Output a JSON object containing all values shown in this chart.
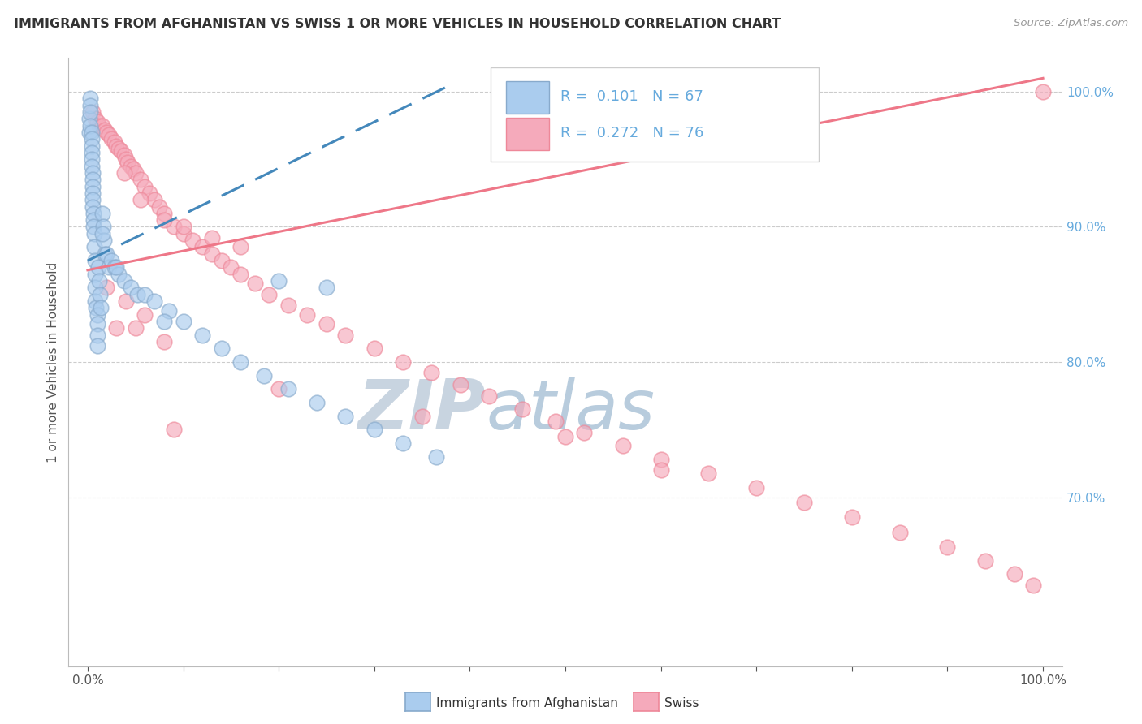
{
  "title": "IMMIGRANTS FROM AFGHANISTAN VS SWISS 1 OR MORE VEHICLES IN HOUSEHOLD CORRELATION CHART",
  "source": "Source: ZipAtlas.com",
  "ylabel": "1 or more Vehicles in Household",
  "watermark_zip": "ZIP",
  "watermark_atlas": "atlas",
  "xlim": [
    -0.02,
    1.02
  ],
  "ylim": [
    0.575,
    1.025
  ],
  "x_tick_positions": [
    0.0,
    0.1,
    0.2,
    0.3,
    0.4,
    0.5,
    0.6,
    0.7,
    0.8,
    0.9,
    1.0
  ],
  "x_tick_labels": [
    "0.0%",
    "",
    "",
    "",
    "",
    "",
    "",
    "",
    "",
    "",
    "100.0%"
  ],
  "y_tick_positions_right": [
    0.7,
    0.8,
    0.9,
    1.0
  ],
  "y_tick_labels_right": [
    "70.0%",
    "80.0%",
    "90.0%",
    "100.0%"
  ],
  "blue_scatter_face": "#aaccee",
  "blue_scatter_edge": "#88aacc",
  "pink_scatter_face": "#f5aabb",
  "pink_scatter_edge": "#ee8899",
  "blue_line_color": "#4488bb",
  "pink_line_color": "#ee7788",
  "grid_color": "#cccccc",
  "title_color": "#333333",
  "source_color": "#999999",
  "right_axis_color": "#66aadd",
  "watermark_zip_color": "#c8d4e0",
  "watermark_atlas_color": "#b8ccdd",
  "legend_border_color": "#cccccc",
  "bottom_label_color": "#333333",
  "blue_points_x": [
    0.002,
    0.002,
    0.003,
    0.003,
    0.003,
    0.003,
    0.004,
    0.004,
    0.004,
    0.004,
    0.004,
    0.004,
    0.005,
    0.005,
    0.005,
    0.005,
    0.005,
    0.005,
    0.006,
    0.006,
    0.006,
    0.007,
    0.007,
    0.008,
    0.008,
    0.008,
    0.008,
    0.009,
    0.01,
    0.01,
    0.01,
    0.01,
    0.011,
    0.012,
    0.013,
    0.014,
    0.015,
    0.016,
    0.017,
    0.018,
    0.02,
    0.022,
    0.025,
    0.028,
    0.032,
    0.038,
    0.045,
    0.052,
    0.06,
    0.07,
    0.085,
    0.1,
    0.12,
    0.14,
    0.16,
    0.185,
    0.21,
    0.24,
    0.27,
    0.3,
    0.33,
    0.365,
    0.2,
    0.25,
    0.08,
    0.03,
    0.015
  ],
  "blue_points_y": [
    0.98,
    0.97,
    0.995,
    0.99,
    0.985,
    0.975,
    0.97,
    0.965,
    0.96,
    0.955,
    0.95,
    0.945,
    0.94,
    0.935,
    0.93,
    0.925,
    0.92,
    0.915,
    0.91,
    0.905,
    0.9,
    0.895,
    0.885,
    0.875,
    0.865,
    0.855,
    0.845,
    0.84,
    0.835,
    0.828,
    0.82,
    0.812,
    0.87,
    0.86,
    0.85,
    0.84,
    0.91,
    0.9,
    0.89,
    0.88,
    0.88,
    0.87,
    0.875,
    0.87,
    0.865,
    0.86,
    0.855,
    0.85,
    0.85,
    0.845,
    0.838,
    0.83,
    0.82,
    0.81,
    0.8,
    0.79,
    0.78,
    0.77,
    0.76,
    0.75,
    0.74,
    0.73,
    0.86,
    0.855,
    0.83,
    0.87,
    0.895
  ],
  "pink_points_x": [
    0.005,
    0.008,
    0.01,
    0.012,
    0.015,
    0.018,
    0.02,
    0.022,
    0.025,
    0.028,
    0.03,
    0.032,
    0.035,
    0.038,
    0.04,
    0.042,
    0.045,
    0.048,
    0.05,
    0.055,
    0.06,
    0.065,
    0.07,
    0.075,
    0.08,
    0.09,
    0.1,
    0.11,
    0.12,
    0.13,
    0.14,
    0.15,
    0.16,
    0.175,
    0.19,
    0.21,
    0.23,
    0.25,
    0.27,
    0.3,
    0.33,
    0.36,
    0.39,
    0.42,
    0.455,
    0.49,
    0.52,
    0.56,
    0.6,
    0.65,
    0.7,
    0.75,
    0.8,
    0.85,
    0.9,
    0.94,
    0.97,
    0.99,
    1.0,
    0.038,
    0.055,
    0.08,
    0.1,
    0.13,
    0.16,
    0.03,
    0.05,
    0.08,
    0.2,
    0.35,
    0.5,
    0.6,
    0.02,
    0.04,
    0.06,
    0.09
  ],
  "pink_points_y": [
    0.985,
    0.98,
    0.978,
    0.975,
    0.975,
    0.972,
    0.97,
    0.968,
    0.965,
    0.963,
    0.96,
    0.958,
    0.956,
    0.953,
    0.95,
    0.948,
    0.945,
    0.943,
    0.94,
    0.935,
    0.93,
    0.925,
    0.92,
    0.915,
    0.91,
    0.9,
    0.895,
    0.89,
    0.885,
    0.88,
    0.875,
    0.87,
    0.865,
    0.858,
    0.85,
    0.842,
    0.835,
    0.828,
    0.82,
    0.81,
    0.8,
    0.792,
    0.783,
    0.775,
    0.765,
    0.756,
    0.748,
    0.738,
    0.728,
    0.718,
    0.707,
    0.696,
    0.685,
    0.674,
    0.663,
    0.653,
    0.643,
    0.635,
    1.0,
    0.94,
    0.92,
    0.905,
    0.9,
    0.892,
    0.885,
    0.825,
    0.825,
    0.815,
    0.78,
    0.76,
    0.745,
    0.72,
    0.855,
    0.845,
    0.835,
    0.75
  ]
}
